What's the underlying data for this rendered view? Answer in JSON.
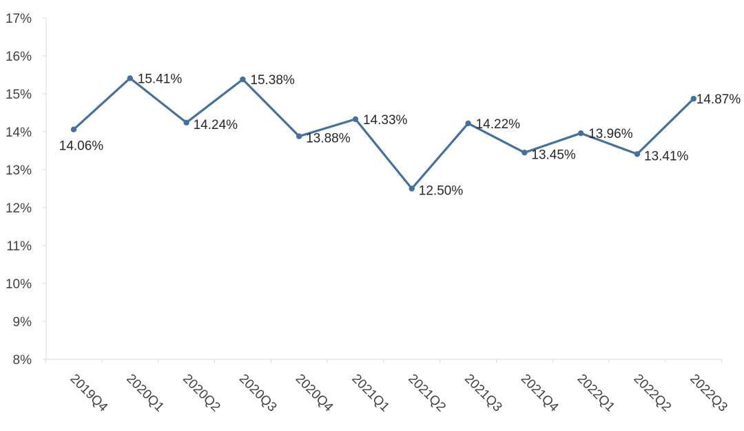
{
  "chart_data": {
    "type": "line",
    "title": "",
    "xlabel": "",
    "ylabel": "",
    "categories": [
      "2019Q4",
      "2020Q1",
      "2020Q2",
      "2020Q3",
      "2020Q4",
      "2021Q1",
      "2021Q2",
      "2021Q3",
      "2021Q4",
      "2022Q1",
      "2022Q2",
      "2022Q3"
    ],
    "series": [
      {
        "values": [
          14.06,
          15.41,
          14.24,
          15.38,
          13.88,
          14.33,
          12.5,
          14.22,
          13.45,
          13.96,
          13.41,
          14.87
        ],
        "data_labels": [
          "14.06%",
          "15.41%",
          "14.24%",
          "15.38%",
          "13.88%",
          "14.33%",
          "12.50%",
          "14.22%",
          "13.45%",
          "13.96%",
          "13.41%",
          "14.87%"
        ],
        "color": "#44709e"
      }
    ],
    "ylim": [
      8,
      17
    ],
    "y_ticks": [
      "8%",
      "9%",
      "10%",
      "11%",
      "12%",
      "13%",
      "14%",
      "15%",
      "16%",
      "17%"
    ],
    "grid": false,
    "legend": "none"
  }
}
